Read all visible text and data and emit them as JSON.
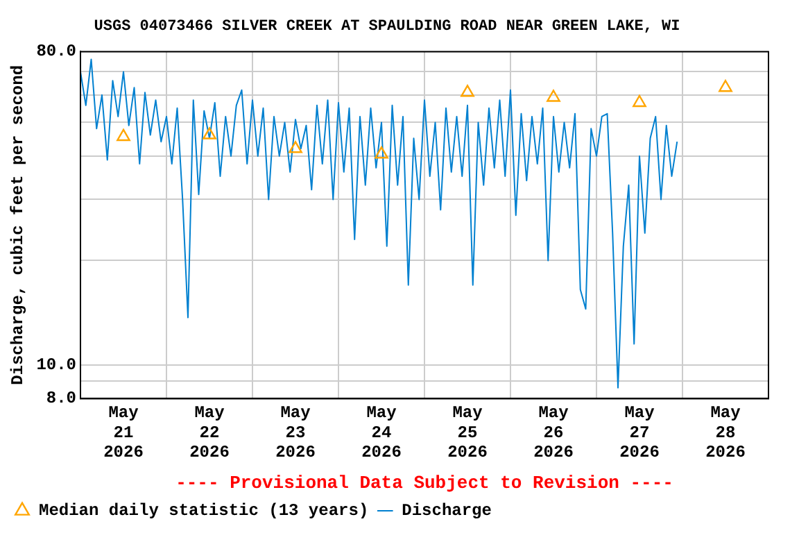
{
  "chart_data": {
    "type": "line",
    "title": "USGS 04073466 SILVER CREEK AT SPAULDING ROAD NEAR GREEN LAKE, WI",
    "ylabel": "Discharge, cubic feet per second",
    "annotations": [
      "---- Provisional Data Subject to Revision ----"
    ],
    "log": "y",
    "grid": true,
    "legend": "bottom",
    "xlim": [
      "2026-05-21T00:00",
      "2026-05-29T00:00"
    ],
    "xticks": [
      {
        "value": "2026-05-21T00:00",
        "label": null
      },
      {
        "value": "2026-05-21T12:00",
        "label": "May 21 2026"
      },
      {
        "value": "2026-05-22T00:00",
        "label": null
      },
      {
        "value": "2026-05-22T12:00",
        "label": "May 22 2026"
      },
      {
        "value": "2026-05-23T00:00",
        "label": null
      },
      {
        "value": "2026-05-23T12:00",
        "label": "May 23 2026"
      },
      {
        "value": "2026-05-24T00:00",
        "label": null
      },
      {
        "value": "2026-05-24T12:00",
        "label": "May 24 2026"
      },
      {
        "value": "2026-05-25T00:00",
        "label": null
      },
      {
        "value": "2026-05-25T12:00",
        "label": "May 25 2026"
      },
      {
        "value": "2026-05-26T00:00",
        "label": null
      },
      {
        "value": "2026-05-26T12:00",
        "label": "May 26 2026"
      },
      {
        "value": "2026-05-27T00:00",
        "label": null
      },
      {
        "value": "2026-05-27T12:00",
        "label": "May 27 2026"
      },
      {
        "value": "2026-05-28T00:00",
        "label": null
      },
      {
        "value": "2026-05-28T12:00",
        "label": "May 28 2026"
      },
      {
        "value": "2026-05-29T00:00",
        "label": null
      }
    ],
    "ylim": [
      8,
      80
    ],
    "yticks": [
      {
        "value": 8,
        "label": "8.0"
      },
      {
        "value": 9,
        "label": null
      },
      {
        "value": 10,
        "label": "10.0"
      },
      {
        "value": 20,
        "label": null
      },
      {
        "value": 30,
        "label": null
      },
      {
        "value": 40,
        "label": null
      },
      {
        "value": 50,
        "label": null
      },
      {
        "value": 60,
        "label": null
      },
      {
        "value": 70,
        "label": null
      },
      {
        "value": 80,
        "label": "80.0"
      }
    ],
    "series": [
      {
        "name": "Median daily statistic (13 years)",
        "type": "scatter",
        "marker": "triangle",
        "color": "#ffa500",
        "x": [
          "2026-05-21T12:00",
          "2026-05-22T12:00",
          "2026-05-23T12:00",
          "2026-05-24T12:00",
          "2026-05-25T12:00",
          "2026-05-26T12:00",
          "2026-05-27T12:00",
          "2026-05-28T12:00"
        ],
        "values": [
          45.5,
          46,
          42,
          40.5,
          61,
          59,
          57,
          63
        ]
      },
      {
        "name": "Discharge",
        "marker": "none",
        "color": "#0080d0",
        "x": [
          "2026-05-21T00:00",
          "2026-05-21T01:30",
          "2026-05-21T03:00",
          "2026-05-21T04:30",
          "2026-05-21T06:00",
          "2026-05-21T07:30",
          "2026-05-21T09:00",
          "2026-05-21T10:30",
          "2026-05-21T12:00",
          "2026-05-21T13:30",
          "2026-05-21T15:00",
          "2026-05-21T16:30",
          "2026-05-21T18:00",
          "2026-05-21T19:30",
          "2026-05-21T21:00",
          "2026-05-21T22:30",
          "2026-05-22T00:00",
          "2026-05-22T01:30",
          "2026-05-22T03:00",
          "2026-05-22T04:30",
          "2026-05-22T06:00",
          "2026-05-22T07:30",
          "2026-05-22T09:00",
          "2026-05-22T10:30",
          "2026-05-22T12:00",
          "2026-05-22T13:30",
          "2026-05-22T15:00",
          "2026-05-22T16:30",
          "2026-05-22T18:00",
          "2026-05-22T19:30",
          "2026-05-22T21:00",
          "2026-05-22T22:30",
          "2026-05-23T00:00",
          "2026-05-23T01:30",
          "2026-05-23T03:00",
          "2026-05-23T04:30",
          "2026-05-23T06:00",
          "2026-05-23T07:30",
          "2026-05-23T09:00",
          "2026-05-23T10:30",
          "2026-05-23T12:00",
          "2026-05-23T13:30",
          "2026-05-23T15:00",
          "2026-05-23T16:30",
          "2026-05-23T18:00",
          "2026-05-23T19:30",
          "2026-05-23T21:00",
          "2026-05-23T22:30",
          "2026-05-24T00:00",
          "2026-05-24T01:30",
          "2026-05-24T03:00",
          "2026-05-24T04:30",
          "2026-05-24T06:00",
          "2026-05-24T07:30",
          "2026-05-24T09:00",
          "2026-05-24T10:30",
          "2026-05-24T12:00",
          "2026-05-24T13:30",
          "2026-05-24T15:00",
          "2026-05-24T16:30",
          "2026-05-24T18:00",
          "2026-05-24T19:30",
          "2026-05-24T21:00",
          "2026-05-24T22:30",
          "2026-05-25T00:00",
          "2026-05-25T01:30",
          "2026-05-25T03:00",
          "2026-05-25T04:30",
          "2026-05-25T06:00",
          "2026-05-25T07:30",
          "2026-05-25T09:00",
          "2026-05-25T10:30",
          "2026-05-25T12:00",
          "2026-05-25T13:30",
          "2026-05-25T15:00",
          "2026-05-25T16:30",
          "2026-05-25T18:00",
          "2026-05-25T19:30",
          "2026-05-25T21:00",
          "2026-05-25T22:30",
          "2026-05-26T00:00",
          "2026-05-26T01:30",
          "2026-05-26T03:00",
          "2026-05-26T04:30",
          "2026-05-26T06:00",
          "2026-05-26T07:30",
          "2026-05-26T09:00",
          "2026-05-26T10:30",
          "2026-05-26T12:00",
          "2026-05-26T13:30",
          "2026-05-26T15:00",
          "2026-05-26T16:30",
          "2026-05-26T18:00",
          "2026-05-26T19:30",
          "2026-05-26T21:00",
          "2026-05-26T22:30",
          "2026-05-27T00:00",
          "2026-05-27T01:30",
          "2026-05-27T03:00",
          "2026-05-27T04:30",
          "2026-05-27T06:00",
          "2026-05-27T07:30",
          "2026-05-27T09:00",
          "2026-05-27T10:30",
          "2026-05-27T12:00",
          "2026-05-27T13:30",
          "2026-05-27T15:00",
          "2026-05-27T16:30",
          "2026-05-27T18:00",
          "2026-05-27T19:30",
          "2026-05-27T21:00",
          "2026-05-27T22:30"
        ],
        "values": [
          70,
          56,
          76,
          48,
          60,
          39,
          66,
          52,
          70,
          49,
          63,
          38,
          61,
          46,
          58,
          44,
          52,
          38,
          55,
          30,
          13.7,
          58,
          31,
          54,
          45,
          57,
          35,
          52,
          40,
          56,
          62,
          38,
          58,
          40,
          55,
          30,
          52,
          40,
          50,
          36,
          51,
          42,
          49,
          32,
          56,
          38,
          58,
          30,
          57,
          36,
          55,
          23,
          52,
          33,
          55,
          37,
          50,
          22,
          56,
          33,
          52,
          17,
          45,
          30,
          58,
          35,
          50,
          28,
          55,
          36,
          52,
          35,
          56,
          17,
          50,
          33,
          55,
          37,
          58,
          35,
          62,
          27,
          53,
          34,
          52,
          38,
          55,
          20,
          52,
          36,
          50,
          37,
          53,
          16.5,
          14.5,
          48,
          40,
          52,
          53,
          24,
          8.6,
          22,
          33,
          11.5,
          40,
          24,
          45,
          52,
          30,
          49,
          35,
          44
        ]
      }
    ]
  }
}
